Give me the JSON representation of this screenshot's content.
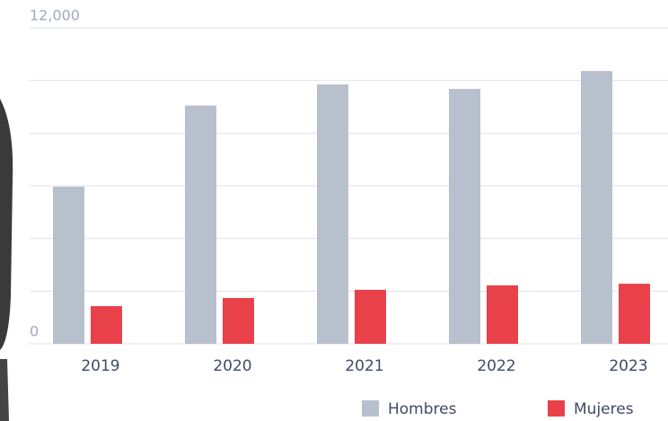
{
  "chart_data": {
    "type": "bar",
    "categories": [
      "2019",
      "2020",
      "2021",
      "2022",
      "2023"
    ],
    "series": [
      {
        "name": "Hombres",
        "color": "#b8bfcd",
        "values": [
          5966,
          9050,
          9850,
          9680,
          10360
        ]
      },
      {
        "name": "Mujeres",
        "color": "#e8414a",
        "values": [
          1430,
          1740,
          2050,
          2220,
          2280
        ]
      }
    ],
    "ylim": [
      0,
      12000
    ],
    "yticks": [
      0,
      {
        "value": 12000,
        "label": "12,000"
      }
    ],
    "ygrid": [
      0,
      2000,
      4000,
      6000,
      8000,
      10000,
      12000
    ],
    "grid": true
  }
}
